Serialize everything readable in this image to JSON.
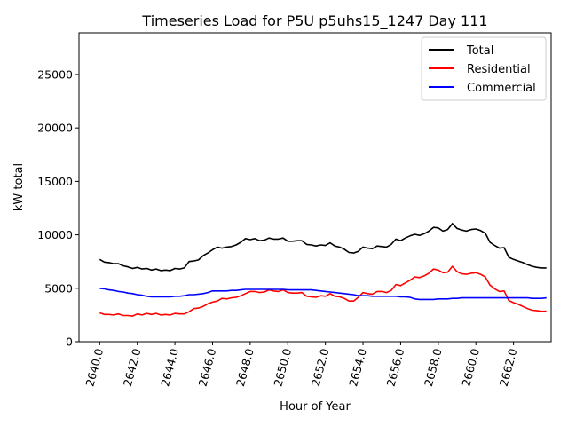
{
  "chart_data": {
    "type": "line",
    "title": "Timeseries Load for P5U p5uhs15_1247  Day 111",
    "xlabel": "Hour of Year",
    "ylabel": "kW total",
    "xlim": [
      2638.9,
      2664.0
    ],
    "ylim": [
      0,
      28900
    ],
    "xticks": [
      2640,
      2642,
      2644,
      2646,
      2648,
      2650,
      2652,
      2654,
      2656,
      2658,
      2660,
      2662
    ],
    "xtick_labels": [
      "2640.0",
      "2642.0",
      "2644.0",
      "2646.0",
      "2648.0",
      "2650.0",
      "2652.0",
      "2654.0",
      "2656.0",
      "2658.0",
      "2660.0",
      "2662.0"
    ],
    "yticks": [
      0,
      5000,
      10000,
      15000,
      20000,
      25000
    ],
    "ytick_labels": [
      "0",
      "5000",
      "10000",
      "15000",
      "20000",
      "25000"
    ],
    "legend_position": "top-right",
    "x": [
      2640.0,
      2640.25,
      2640.5,
      2640.75,
      2641.0,
      2641.25,
      2641.5,
      2641.75,
      2642.0,
      2642.25,
      2642.5,
      2642.75,
      2643.0,
      2643.25,
      2643.5,
      2643.75,
      2644.0,
      2644.25,
      2644.5,
      2644.75,
      2645.0,
      2645.25,
      2645.5,
      2645.75,
      2646.0,
      2646.25,
      2646.5,
      2646.75,
      2647.0,
      2647.25,
      2647.5,
      2647.75,
      2648.0,
      2648.25,
      2648.5,
      2648.75,
      2649.0,
      2649.25,
      2649.5,
      2649.75,
      2650.0,
      2650.25,
      2650.5,
      2650.75,
      2651.0,
      2651.25,
      2651.5,
      2651.75,
      2652.0,
      2652.25,
      2652.5,
      2652.75,
      2653.0,
      2653.25,
      2653.5,
      2653.75,
      2654.0,
      2654.25,
      2654.5,
      2654.75,
      2655.0,
      2655.25,
      2655.5,
      2655.75,
      2656.0,
      2656.25,
      2656.5,
      2656.75,
      2657.0,
      2657.25,
      2657.5,
      2657.75,
      2658.0,
      2658.25,
      2658.5,
      2658.75,
      2659.0,
      2659.25,
      2659.5,
      2659.75,
      2660.0,
      2660.25,
      2660.5,
      2660.75,
      2661.0,
      2661.25,
      2661.5,
      2661.75,
      2662.0,
      2662.25,
      2662.5,
      2662.75,
      2663.0,
      2663.25,
      2663.5,
      2663.75
    ],
    "series": [
      {
        "name": "Total",
        "color": "#000000",
        "values": [
          7700,
          7450,
          7400,
          7300,
          7300,
          7100,
          7000,
          6850,
          6950,
          6800,
          6850,
          6700,
          6800,
          6650,
          6700,
          6650,
          6850,
          6800,
          6900,
          7500,
          7550,
          7650,
          8050,
          8300,
          8600,
          8850,
          8750,
          8850,
          8900,
          9050,
          9300,
          9650,
          9550,
          9650,
          9450,
          9500,
          9700,
          9600,
          9600,
          9700,
          9400,
          9400,
          9450,
          9450,
          9100,
          9050,
          8950,
          9050,
          9000,
          9250,
          8950,
          8850,
          8650,
          8350,
          8300,
          8450,
          8850,
          8750,
          8700,
          8950,
          8900,
          8850,
          9100,
          9600,
          9450,
          9700,
          9900,
          10050,
          9950,
          10100,
          10350,
          10700,
          10650,
          10350,
          10500,
          11050,
          10600,
          10450,
          10350,
          10500,
          10550,
          10400,
          10150,
          9300,
          9000,
          8750,
          8800,
          7900,
          7700,
          7550,
          7400,
          7200,
          7050,
          6950,
          6900,
          6900
        ]
      },
      {
        "name": "Residential",
        "color": "#ff0000",
        "values": [
          2700,
          2550,
          2550,
          2500,
          2600,
          2450,
          2450,
          2400,
          2600,
          2500,
          2650,
          2550,
          2650,
          2500,
          2550,
          2500,
          2650,
          2600,
          2600,
          2800,
          3100,
          3150,
          3300,
          3550,
          3700,
          3800,
          4050,
          4000,
          4100,
          4150,
          4300,
          4500,
          4700,
          4700,
          4600,
          4650,
          4850,
          4750,
          4700,
          4850,
          4600,
          4550,
          4550,
          4600,
          4250,
          4200,
          4150,
          4300,
          4250,
          4500,
          4250,
          4200,
          4050,
          3800,
          3800,
          4150,
          4600,
          4500,
          4450,
          4700,
          4700,
          4600,
          4800,
          5350,
          5250,
          5500,
          5750,
          6050,
          6000,
          6150,
          6400,
          6800,
          6700,
          6450,
          6500,
          7050,
          6550,
          6350,
          6300,
          6400,
          6450,
          6300,
          6050,
          5300,
          4950,
          4700,
          4750,
          3850,
          3650,
          3500,
          3300,
          3100,
          2950,
          2900,
          2850,
          2850
        ]
      },
      {
        "name": "Commercial",
        "color": "#0000ff",
        "values": [
          5000,
          4950,
          4850,
          4800,
          4700,
          4650,
          4550,
          4500,
          4400,
          4350,
          4250,
          4200,
          4200,
          4200,
          4200,
          4200,
          4250,
          4250,
          4300,
          4400,
          4400,
          4450,
          4500,
          4600,
          4750,
          4750,
          4750,
          4750,
          4800,
          4800,
          4850,
          4900,
          4900,
          4900,
          4900,
          4900,
          4900,
          4900,
          4900,
          4900,
          4850,
          4850,
          4850,
          4850,
          4850,
          4850,
          4800,
          4750,
          4700,
          4650,
          4600,
          4550,
          4500,
          4450,
          4400,
          4300,
          4300,
          4300,
          4250,
          4250,
          4250,
          4250,
          4250,
          4250,
          4200,
          4200,
          4150,
          4000,
          3950,
          3950,
          3950,
          3950,
          4000,
          4000,
          4000,
          4050,
          4050,
          4100,
          4100,
          4100,
          4100,
          4100,
          4100,
          4100,
          4100,
          4100,
          4100,
          4100,
          4100,
          4100,
          4100,
          4100,
          4050,
          4050,
          4050,
          4100
        ]
      }
    ]
  }
}
